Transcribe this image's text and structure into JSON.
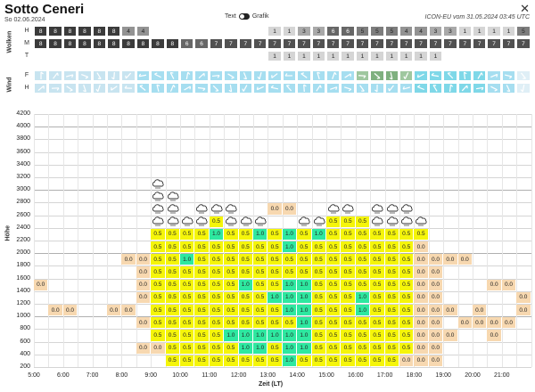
{
  "header": {
    "title": "Sotto Ceneri",
    "date": "So 02.06.2024",
    "toggle_left": "Text",
    "toggle_right": "Grafik",
    "model": "ICON-EU vom 31.05.2024 03:45 UTC",
    "close_icon": "close-icon"
  },
  "clouds": {
    "section_label": "Wolken",
    "rows": [
      {
        "label": "H",
        "values": [
          "8",
          "8",
          "8",
          "8",
          "8",
          "8",
          "4",
          "4",
          "",
          "",
          "",
          "",
          "",
          "",
          "",
          "",
          "1",
          "1",
          "3",
          "3",
          "6",
          "6",
          "5",
          "5",
          "5",
          "4",
          "4",
          "3",
          "3",
          "1",
          "1",
          "1",
          "1",
          "5",
          "5",
          "6",
          "6"
        ]
      },
      {
        "label": "M",
        "values": [
          "8",
          "8",
          "8",
          "8",
          "8",
          "8",
          "8",
          "8",
          "8",
          "8",
          "6",
          "6",
          "7",
          "7",
          "7",
          "7",
          "7",
          "7",
          "7",
          "7",
          "7",
          "7",
          "7",
          "7",
          "7",
          "7",
          "7",
          "7",
          "7",
          "7",
          "7",
          "7",
          "7",
          "7",
          "7",
          "7",
          "7"
        ]
      },
      {
        "label": "T",
        "values": [
          "",
          "",
          "",
          "",
          "",
          "",
          "",
          "",
          "",
          "",
          "",
          "",
          "",
          "",
          "",
          "",
          "1",
          "1",
          "1",
          "1",
          "1",
          "1",
          "1",
          "1",
          "1",
          "1",
          "1",
          "1",
          "",
          "",
          "",
          "",
          "",
          "",
          "",
          "1",
          "1"
        ]
      }
    ]
  },
  "wind": {
    "section_label": "Wind",
    "rows": [
      {
        "label": "F"
      },
      {
        "label": "H"
      }
    ]
  },
  "main": {
    "y_axis_label": "Höhe",
    "x_axis_label": "Zeit (LT)",
    "y_ticks": [
      "4200",
      "4000",
      "3800",
      "3600",
      "3400",
      "3200",
      "3000",
      "2800",
      "2600",
      "2400",
      "2200",
      "2000",
      "1800",
      "1600",
      "1400",
      "1200",
      "1000",
      "800",
      "600",
      "400",
      "200"
    ],
    "x_ticks": [
      "5:00",
      "6:00",
      "7:00",
      "8:00",
      "9:00",
      "10:00",
      "11:00",
      "12:00",
      "13:00",
      "14:00",
      "15:00",
      "16:00",
      "17:00",
      "18:00",
      "19:00",
      "20:00",
      "21:00"
    ]
  },
  "colors": {
    "peach": "#f7d8b0",
    "yellow": "#f5f50a",
    "green": "#2ee8a0",
    "cloud_dark": "#555",
    "wind_blue": "#7fd8e8",
    "wind_green": "#8fbf8f"
  }
}
